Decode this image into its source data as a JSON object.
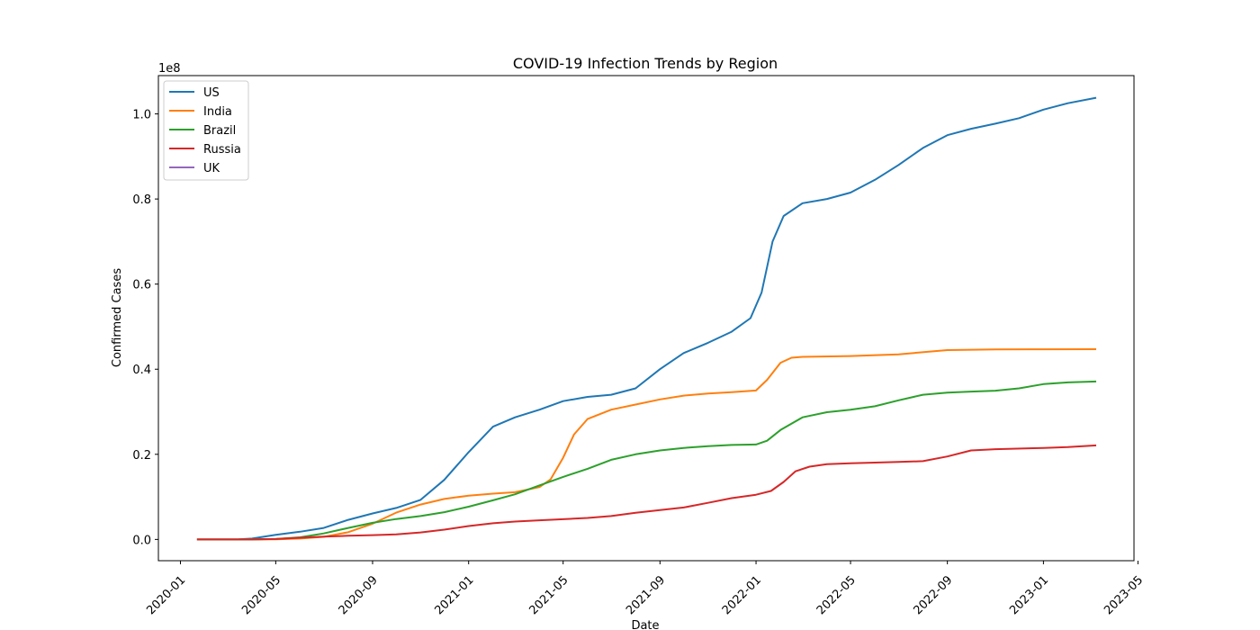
{
  "chart_data": {
    "type": "line",
    "title": "COVID-19 Infection Trends by Region",
    "xlabel": "Date",
    "ylabel": "Confirmed Cases",
    "y_offset_label": "1e8",
    "y_scale_factor": 100000000,
    "ylim": [
      -5000000,
      109000000
    ],
    "xlim": [
      "2019-12-04",
      "2023-04-26"
    ],
    "x_ticks": [
      "2020-01",
      "2020-05",
      "2020-09",
      "2021-01",
      "2021-05",
      "2021-09",
      "2022-01",
      "2022-05",
      "2022-09",
      "2023-01",
      "2023-05"
    ],
    "y_ticks": [
      "0.0",
      "0.2",
      "0.4",
      "0.6",
      "0.8",
      "1.0"
    ],
    "grid": false,
    "legend_position": "upper left",
    "colors": {
      "US": "#1f77b4",
      "India": "#ff7f0e",
      "Brazil": "#2ca02c",
      "Russia": "#d62728",
      "UK": "#9467bd"
    },
    "series": [
      {
        "name": "US",
        "points": [
          [
            "2020-01-22",
            0
          ],
          [
            "2020-03-15",
            5000
          ],
          [
            "2020-04-01",
            200000
          ],
          [
            "2020-05-01",
            1100000
          ],
          [
            "2020-06-01",
            1800000
          ],
          [
            "2020-07-01",
            2700000
          ],
          [
            "2020-08-01",
            4600000
          ],
          [
            "2020-09-01",
            6100000
          ],
          [
            "2020-10-01",
            7400000
          ],
          [
            "2020-11-01",
            9300000
          ],
          [
            "2020-12-01",
            14000000
          ],
          [
            "2021-01-01",
            20500000
          ],
          [
            "2021-02-01",
            26500000
          ],
          [
            "2021-03-01",
            28700000
          ],
          [
            "2021-04-01",
            30500000
          ],
          [
            "2021-05-01",
            32500000
          ],
          [
            "2021-06-01",
            33500000
          ],
          [
            "2021-07-01",
            34000000
          ],
          [
            "2021-08-01",
            35500000
          ],
          [
            "2021-09-01",
            40000000
          ],
          [
            "2021-10-01",
            43800000
          ],
          [
            "2021-11-01",
            46200000
          ],
          [
            "2021-12-01",
            48800000
          ],
          [
            "2021-12-25",
            52000000
          ],
          [
            "2022-01-08",
            58000000
          ],
          [
            "2022-01-22",
            70000000
          ],
          [
            "2022-02-05",
            76000000
          ],
          [
            "2022-03-01",
            79000000
          ],
          [
            "2022-04-01",
            80000000
          ],
          [
            "2022-05-01",
            81500000
          ],
          [
            "2022-06-01",
            84500000
          ],
          [
            "2022-07-01",
            88000000
          ],
          [
            "2022-08-01",
            92000000
          ],
          [
            "2022-09-01",
            95000000
          ],
          [
            "2022-10-01",
            96500000
          ],
          [
            "2022-11-01",
            97700000
          ],
          [
            "2022-12-01",
            99000000
          ],
          [
            "2023-01-01",
            101000000
          ],
          [
            "2023-02-01",
            102500000
          ],
          [
            "2023-03-09",
            103800000
          ]
        ]
      },
      {
        "name": "India",
        "points": [
          [
            "2020-01-22",
            0
          ],
          [
            "2020-04-01",
            2000
          ],
          [
            "2020-05-01",
            40000
          ],
          [
            "2020-06-01",
            200000
          ],
          [
            "2020-07-01",
            600000
          ],
          [
            "2020-08-01",
            1700000
          ],
          [
            "2020-09-01",
            3700000
          ],
          [
            "2020-10-01",
            6300000
          ],
          [
            "2020-11-01",
            8200000
          ],
          [
            "2020-12-01",
            9500000
          ],
          [
            "2021-01-01",
            10300000
          ],
          [
            "2021-02-01",
            10750000
          ],
          [
            "2021-03-01",
            11100000
          ],
          [
            "2021-04-01",
            12300000
          ],
          [
            "2021-04-15",
            14100000
          ],
          [
            "2021-05-01",
            19200000
          ],
          [
            "2021-05-15",
            24700000
          ],
          [
            "2021-06-01",
            28300000
          ],
          [
            "2021-07-01",
            30500000
          ],
          [
            "2021-08-01",
            31700000
          ],
          [
            "2021-09-01",
            32900000
          ],
          [
            "2021-10-01",
            33800000
          ],
          [
            "2021-11-01",
            34300000
          ],
          [
            "2021-12-01",
            34600000
          ],
          [
            "2022-01-01",
            35000000
          ],
          [
            "2022-01-15",
            37500000
          ],
          [
            "2022-02-01",
            41500000
          ],
          [
            "2022-02-15",
            42700000
          ],
          [
            "2022-03-01",
            42900000
          ],
          [
            "2022-05-01",
            43100000
          ],
          [
            "2022-07-01",
            43500000
          ],
          [
            "2022-09-01",
            44500000
          ],
          [
            "2022-11-01",
            44650000
          ],
          [
            "2023-01-01",
            44680000
          ],
          [
            "2023-03-09",
            44700000
          ]
        ]
      },
      {
        "name": "Brazil",
        "points": [
          [
            "2020-01-22",
            0
          ],
          [
            "2020-03-15",
            200
          ],
          [
            "2020-04-01",
            6000
          ],
          [
            "2020-05-01",
            90000
          ],
          [
            "2020-06-01",
            500000
          ],
          [
            "2020-07-01",
            1400000
          ],
          [
            "2020-08-01",
            2700000
          ],
          [
            "2020-09-01",
            3900000
          ],
          [
            "2020-10-01",
            4800000
          ],
          [
            "2020-11-01",
            5500000
          ],
          [
            "2020-12-01",
            6400000
          ],
          [
            "2021-01-01",
            7700000
          ],
          [
            "2021-02-01",
            9200000
          ],
          [
            "2021-03-01",
            10600000
          ],
          [
            "2021-04-01",
            12700000
          ],
          [
            "2021-05-01",
            14700000
          ],
          [
            "2021-06-01",
            16600000
          ],
          [
            "2021-07-01",
            18700000
          ],
          [
            "2021-08-01",
            20000000
          ],
          [
            "2021-09-01",
            20900000
          ],
          [
            "2021-10-01",
            21500000
          ],
          [
            "2021-11-01",
            21900000
          ],
          [
            "2021-12-01",
            22200000
          ],
          [
            "2022-01-01",
            22300000
          ],
          [
            "2022-01-15",
            23200000
          ],
          [
            "2022-02-01",
            25700000
          ],
          [
            "2022-03-01",
            28700000
          ],
          [
            "2022-04-01",
            29900000
          ],
          [
            "2022-05-01",
            30500000
          ],
          [
            "2022-06-01",
            31300000
          ],
          [
            "2022-07-01",
            32700000
          ],
          [
            "2022-08-01",
            34000000
          ],
          [
            "2022-09-01",
            34500000
          ],
          [
            "2022-10-01",
            34750000
          ],
          [
            "2022-11-01",
            34950000
          ],
          [
            "2022-12-01",
            35500000
          ],
          [
            "2023-01-01",
            36500000
          ],
          [
            "2023-02-01",
            36900000
          ],
          [
            "2023-03-09",
            37100000
          ]
        ]
      },
      {
        "name": "Russia",
        "points": [
          [
            "2020-01-22",
            0
          ],
          [
            "2020-04-01",
            2000
          ],
          [
            "2020-05-01",
            100000
          ],
          [
            "2020-06-01",
            400000
          ],
          [
            "2020-07-01",
            650000
          ],
          [
            "2020-08-01",
            850000
          ],
          [
            "2020-09-01",
            1000000
          ],
          [
            "2020-10-01",
            1200000
          ],
          [
            "2020-11-01",
            1650000
          ],
          [
            "2020-12-01",
            2300000
          ],
          [
            "2021-01-01",
            3150000
          ],
          [
            "2021-02-01",
            3800000
          ],
          [
            "2021-03-01",
            4200000
          ],
          [
            "2021-04-01",
            4500000
          ],
          [
            "2021-05-01",
            4750000
          ],
          [
            "2021-06-01",
            5050000
          ],
          [
            "2021-07-01",
            5500000
          ],
          [
            "2021-08-01",
            6250000
          ],
          [
            "2021-09-01",
            6900000
          ],
          [
            "2021-10-01",
            7500000
          ],
          [
            "2021-11-01",
            8600000
          ],
          [
            "2021-12-01",
            9700000
          ],
          [
            "2022-01-01",
            10500000
          ],
          [
            "2022-01-20",
            11400000
          ],
          [
            "2022-02-05",
            13500000
          ],
          [
            "2022-02-20",
            16000000
          ],
          [
            "2022-03-10",
            17100000
          ],
          [
            "2022-04-01",
            17700000
          ],
          [
            "2022-05-01",
            17900000
          ],
          [
            "2022-06-01",
            18050000
          ],
          [
            "2022-07-01",
            18200000
          ],
          [
            "2022-08-01",
            18400000
          ],
          [
            "2022-09-01",
            19500000
          ],
          [
            "2022-10-01",
            20900000
          ],
          [
            "2022-11-01",
            21200000
          ],
          [
            "2023-01-01",
            21500000
          ],
          [
            "2023-02-01",
            21700000
          ],
          [
            "2023-03-09",
            22100000
          ]
        ]
      },
      {
        "name": "UK",
        "points": []
      }
    ]
  }
}
